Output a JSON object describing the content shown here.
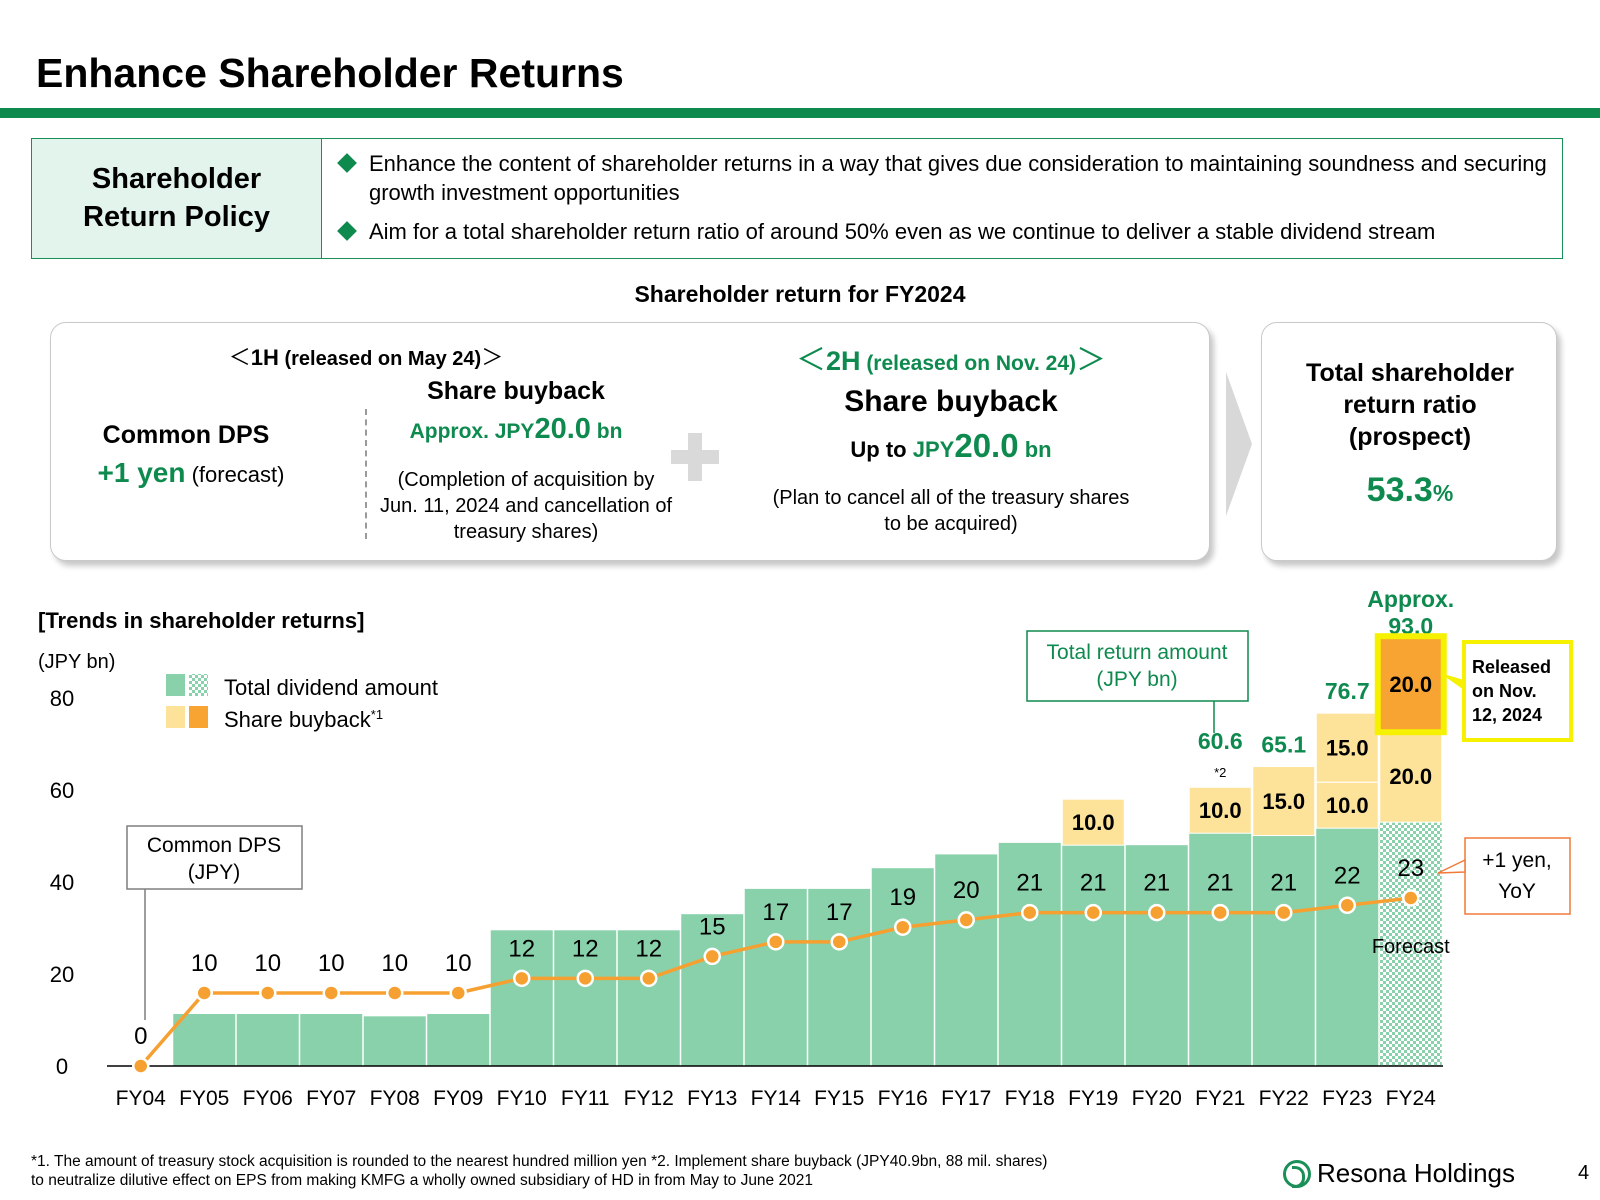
{
  "title": "Enhance Shareholder Returns",
  "policy": {
    "label_line1": "Shareholder",
    "label_line2": "Return Policy",
    "items": [
      "Enhance the content of shareholder returns in a way that gives due consideration to maintaining soundness and securing growth investment opportunities",
      "Aim for a total shareholder return ratio of around 50% even as we continue to deliver a stable dividend stream"
    ]
  },
  "fy2024": {
    "section_title": "Shareholder return for FY2024",
    "h1": {
      "header_open": "＜",
      "header_main": "1H",
      "header_sub": " (released on May 24)",
      "header_close": "＞",
      "dps_title": "Common DPS",
      "dps_value": "+1 yen",
      "dps_note": " (forecast)",
      "buyback_title": "Share buyback",
      "buyback_prefix": "Approx. JPY",
      "buyback_amount": "20.0",
      "buyback_unit": " bn",
      "buyback_note": "(Completion of acquisition by Jun. 11, 2024 and cancellation of treasury shares)"
    },
    "h2": {
      "header_open": "＜",
      "header_main": "2H",
      "header_sub": " (released on Nov. 24)",
      "header_close": "＞",
      "buyback_title": "Share buyback",
      "buyback_prefix": "Up to ",
      "buyback_currency": "JPY",
      "buyback_amount": "20.0",
      "buyback_unit": " bn",
      "buyback_note": "(Plan to cancel all of the treasury shares to be acquired)"
    },
    "ratio": {
      "title": "Total shareholder return ratio (prospect)",
      "value": "53.3",
      "unit": "%"
    }
  },
  "chart_title": "[Trends in shareholder returns]",
  "chart_data": {
    "type": "bar",
    "ylabel": "(JPY bn)",
    "ylim": [
      0,
      80
    ],
    "yticks": [
      0,
      20,
      40,
      60,
      80
    ],
    "categories": [
      "FY04",
      "FY05",
      "FY06",
      "FY07",
      "FY08",
      "FY09",
      "FY10",
      "FY11",
      "FY12",
      "FY13",
      "FY14",
      "FY15",
      "FY16",
      "FY17",
      "FY18",
      "FY19",
      "FY20",
      "FY21",
      "FY22",
      "FY23",
      "FY24"
    ],
    "series": [
      {
        "name": "Total dividend amount",
        "values": [
          0,
          11.3,
          11.3,
          11.3,
          10.8,
          11.3,
          29.5,
          29.5,
          29.5,
          33.0,
          38.5,
          38.5,
          43.0,
          46.0,
          48.5,
          48.0,
          48.0,
          50.6,
          50.1,
          51.7,
          53.0
        ]
      },
      {
        "name": "Share buyback",
        "values": [
          0,
          0,
          0,
          0,
          0,
          0,
          0,
          0,
          0,
          0,
          0,
          0,
          0,
          0,
          0,
          10.0,
          0,
          10.0,
          15.0,
          25.0,
          40.0
        ]
      }
    ],
    "buyback_segments": {
      "FY19": [
        "10.0"
      ],
      "FY21": [
        "10.0"
      ],
      "FY22": [
        "15.0"
      ],
      "FY23": [
        "10.0",
        "15.0"
      ],
      "FY24": [
        "20.0",
        "20.0"
      ]
    },
    "dps_series": {
      "name": "Common DPS",
      "unit_label": "(JPY)",
      "values": [
        0,
        10,
        10,
        10,
        10,
        10,
        12,
        12,
        12,
        15,
        17,
        17,
        19,
        20,
        21,
        21,
        21,
        21,
        21,
        22,
        23
      ]
    },
    "total_return_labels": [
      {
        "category": "FY21",
        "label": "60.6",
        "note": "*2"
      },
      {
        "category": "FY22",
        "label": "65.1"
      },
      {
        "category": "FY23",
        "label": "76.7"
      },
      {
        "category": "FY24",
        "label": "Approx. 93.0"
      }
    ],
    "legend": {
      "dividend": "Total dividend amount",
      "buyback": "Share buyback",
      "buyback_note": "*1",
      "placement": "top-left"
    },
    "annotations": {
      "total_return_box": "Total return amount (JPY bn)",
      "dps_box_line1": "Common DPS",
      "dps_box_line2": "(JPY)",
      "released_box": "Released on Nov. 12, 2024",
      "yoy_box": "+1 yen, YoY",
      "forecast": "Forecast"
    },
    "colors": {
      "dividend": "#88d1ab",
      "buyback": "#fde39a",
      "buyback_new": "#f7a433",
      "line": "#f5a030",
      "green_text": "#0f8a4f",
      "highlight": "#f5f100"
    }
  },
  "footnote": {
    "line1": "*1. The amount of treasury stock acquisition is rounded to the nearest hundred million yen   *2. Implement share buyback (JPY40.9bn, 88 mil. shares)",
    "line2": "to neutralize dilutive effect on EPS from making KMFG a wholly owned subsidiary of HD in from May to June 2021"
  },
  "company_logo": "Resona Holdings",
  "page_number": "4"
}
